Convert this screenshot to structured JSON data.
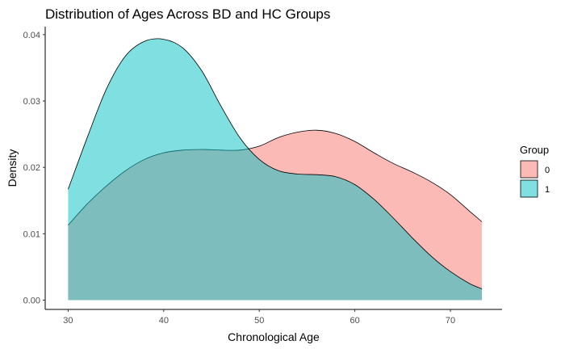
{
  "chart_data": {
    "type": "area",
    "title": "Distribution of Ages Across BD and HC Groups",
    "xlabel": "Chronological Age",
    "ylabel": "Density",
    "xlim": [
      27.6,
      75.4
    ],
    "ylim": [
      -0.0014,
      0.0412
    ],
    "x_ticks": [
      30,
      40,
      50,
      60,
      70
    ],
    "y_ticks": [
      0.0,
      0.01,
      0.02,
      0.03,
      0.04
    ],
    "x_tick_labels": [
      "30",
      "40",
      "50",
      "60",
      "70"
    ],
    "y_tick_labels": [
      "0.00",
      "0.01",
      "0.02",
      "0.03",
      "0.04"
    ],
    "grid": false,
    "legend": {
      "title": "Group",
      "position": "right"
    },
    "series": [
      {
        "name": "0",
        "color": "#F8766D",
        "x": [
          30,
          32,
          34,
          36,
          38,
          40,
          42,
          44,
          46,
          48,
          50,
          52,
          54,
          56,
          58,
          60,
          62,
          64,
          66,
          68,
          70,
          72,
          73.3
        ],
        "values": [
          0.0113,
          0.0145,
          0.0172,
          0.0195,
          0.0212,
          0.0222,
          0.0226,
          0.0227,
          0.0226,
          0.0226,
          0.0232,
          0.0245,
          0.0253,
          0.0256,
          0.0251,
          0.0239,
          0.0222,
          0.0206,
          0.0193,
          0.0178,
          0.0159,
          0.0134,
          0.0118
        ]
      },
      {
        "name": "1",
        "color": "#00BFC4",
        "x": [
          30,
          32,
          34,
          36,
          38,
          40,
          42,
          44,
          46,
          48,
          50,
          52,
          54,
          56,
          58,
          60,
          62,
          64,
          66,
          68,
          70,
          72,
          73.3
        ],
        "values": [
          0.0167,
          0.0245,
          0.0318,
          0.0368,
          0.039,
          0.0393,
          0.038,
          0.0345,
          0.0292,
          0.0244,
          0.0212,
          0.0195,
          0.019,
          0.0189,
          0.0186,
          0.0174,
          0.0152,
          0.0124,
          0.0094,
          0.0066,
          0.0043,
          0.0025,
          0.0017
        ]
      }
    ]
  }
}
